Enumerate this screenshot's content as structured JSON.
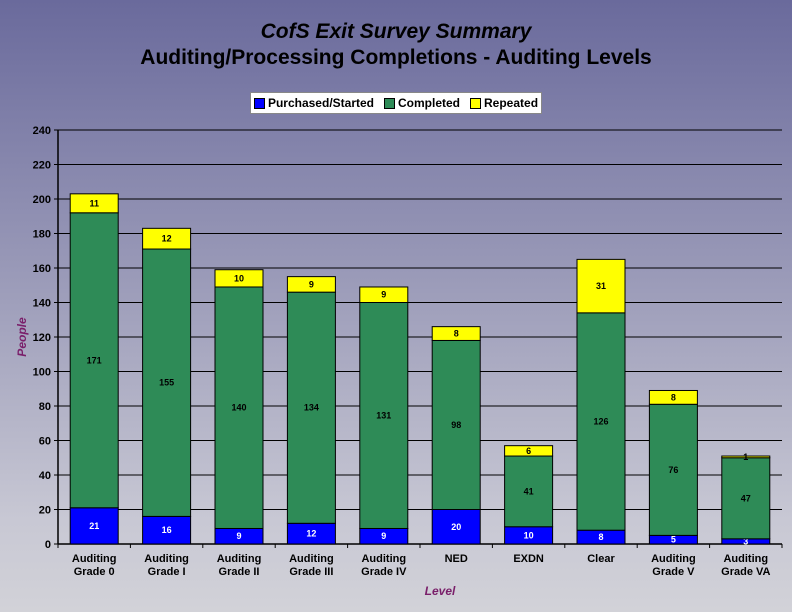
{
  "chart_data": {
    "type": "bar",
    "stacked": true,
    "title": "CofS Exit Survey Summary",
    "subtitle": "Auditing/Processing Completions - Auditing Levels",
    "xlabel": "Level",
    "ylabel": "People",
    "ylim": [
      0,
      240
    ],
    "yticks": [
      0,
      20,
      40,
      60,
      80,
      100,
      120,
      140,
      160,
      180,
      200,
      220,
      240
    ],
    "grid": true,
    "legend_position": "top-center",
    "categories": [
      [
        "Auditing",
        "Grade 0"
      ],
      [
        "Auditing",
        "Grade I"
      ],
      [
        "Auditing",
        "Grade II"
      ],
      [
        "Auditing",
        "Grade III"
      ],
      [
        "Auditing",
        "Grade IV"
      ],
      [
        "NED"
      ],
      [
        "EXDN"
      ],
      [
        "Clear"
      ],
      [
        "Auditing",
        "Grade V"
      ],
      [
        "Auditing",
        "Grade VA"
      ]
    ],
    "series": [
      {
        "name": "Purchased/Started",
        "color": "#0000ff",
        "values": [
          21,
          16,
          9,
          12,
          9,
          20,
          10,
          8,
          5,
          3
        ]
      },
      {
        "name": "Completed",
        "color": "#2e8b57",
        "values": [
          171,
          155,
          140,
          134,
          131,
          98,
          41,
          126,
          76,
          47
        ]
      },
      {
        "name": "Repeated",
        "color": "#ffff00",
        "values": [
          11,
          12,
          10,
          9,
          9,
          8,
          6,
          31,
          8,
          1
        ]
      }
    ]
  }
}
